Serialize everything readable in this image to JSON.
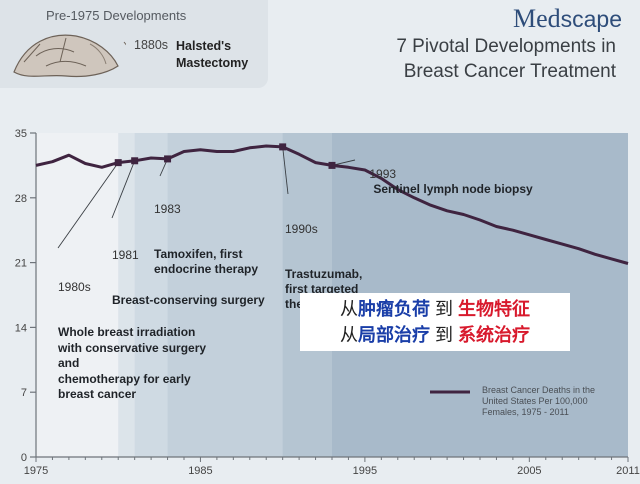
{
  "brand": {
    "med": "Med",
    "scape": "scape"
  },
  "title_line1": "7 Pivotal Developments in",
  "title_line2": "Breast Cancer Treatment",
  "pre1975": {
    "label": "Pre-1975 Developments",
    "year": "1880s",
    "text": "Halsted's\nMastectomy"
  },
  "annotations": [
    {
      "id": "1980s",
      "year": "1980s",
      "text": "Whole breast irradiation\nwith conservative surgery\nand\nchemotherapy for early\nbreast cancer"
    },
    {
      "id": "1981",
      "year": "1981",
      "text": "Breast-conserving surgery"
    },
    {
      "id": "1983",
      "year": "1983",
      "text": "Tamoxifen, first\nendocrine therapy"
    },
    {
      "id": "1990s",
      "year": "1990s",
      "text": "Trastuzumab,\nfirst targeted\ntherapy"
    },
    {
      "id": "1993",
      "year": "1993",
      "text": "Sentinel lymph node biopsy"
    }
  ],
  "overlay": {
    "line1_a": "从",
    "line1_b": "肿瘤负荷",
    "line1_c": " 到 ",
    "line1_d": "生物特征",
    "line2_a": "从",
    "line2_b": "局部治疗",
    "line2_c": " 到 ",
    "line2_d": "系统治疗"
  },
  "colors": {
    "line": "#3f2440",
    "band": "#c4d2dd",
    "accent_blue": "#1a3ea8",
    "accent_red": "#d8192c"
  },
  "chart_data": {
    "type": "line",
    "title": "",
    "xlabel": "",
    "ylabel": "",
    "xlim": [
      1975,
      2011
    ],
    "ylim": [
      0,
      35
    ],
    "x_ticks": [
      1975,
      1985,
      1995,
      2005,
      2011
    ],
    "y_ticks": [
      0,
      7,
      14,
      21,
      28,
      35
    ],
    "legend": "Breast Cancer Deaths in the\nUnited States Per 100,000\nFemales, 1975 - 2011",
    "legend_position": "bottom-right",
    "grid": false,
    "shaded_regions_start_years": [
      1980,
      1981,
      1983,
      1990,
      1993
    ],
    "milestone_markers": [
      {
        "x": 1980,
        "y": 31.8
      },
      {
        "x": 1981,
        "y": 32.0
      },
      {
        "x": 1983,
        "y": 32.2
      },
      {
        "x": 1990,
        "y": 33.5
      },
      {
        "x": 1993,
        "y": 31.5
      }
    ],
    "series": [
      {
        "name": "Breast Cancer Deaths in the United States Per 100,000 Females, 1975 - 2011",
        "x": [
          1975,
          1976,
          1977,
          1978,
          1979,
          1980,
          1981,
          1982,
          1983,
          1984,
          1985,
          1986,
          1987,
          1988,
          1989,
          1990,
          1991,
          1992,
          1993,
          1994,
          1995,
          1996,
          1997,
          1998,
          1999,
          2000,
          2001,
          2002,
          2003,
          2004,
          2005,
          2006,
          2007,
          2008,
          2009,
          2010,
          2011
        ],
        "values": [
          31.5,
          31.9,
          32.6,
          31.7,
          31.3,
          31.8,
          32.0,
          32.3,
          32.2,
          33.0,
          33.2,
          33.0,
          33.0,
          33.4,
          33.6,
          33.5,
          32.7,
          31.8,
          31.5,
          31.3,
          31.0,
          30.1,
          28.9,
          28.0,
          27.2,
          26.6,
          26.2,
          25.6,
          24.9,
          24.5,
          24.0,
          23.5,
          23.0,
          22.5,
          21.9,
          21.4,
          20.9
        ]
      }
    ]
  }
}
